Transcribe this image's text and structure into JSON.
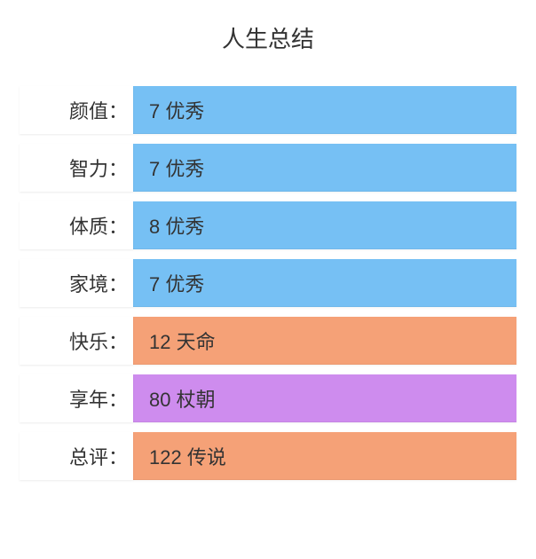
{
  "title": "人生总结",
  "rows": [
    {
      "label": "颜值：",
      "value": "7 优秀",
      "color": "#76c0f4"
    },
    {
      "label": "智力：",
      "value": "7 优秀",
      "color": "#76c0f4"
    },
    {
      "label": "体质：",
      "value": "8 优秀",
      "color": "#76c0f4"
    },
    {
      "label": "家境：",
      "value": "7 优秀",
      "color": "#76c0f4"
    },
    {
      "label": "快乐：",
      "value": "12 天命",
      "color": "#f5a177"
    },
    {
      "label": "享年：",
      "value": "80 杖朝",
      "color": "#ce8cee"
    },
    {
      "label": "总评：",
      "value": "122 传说",
      "color": "#f5a177"
    }
  ]
}
